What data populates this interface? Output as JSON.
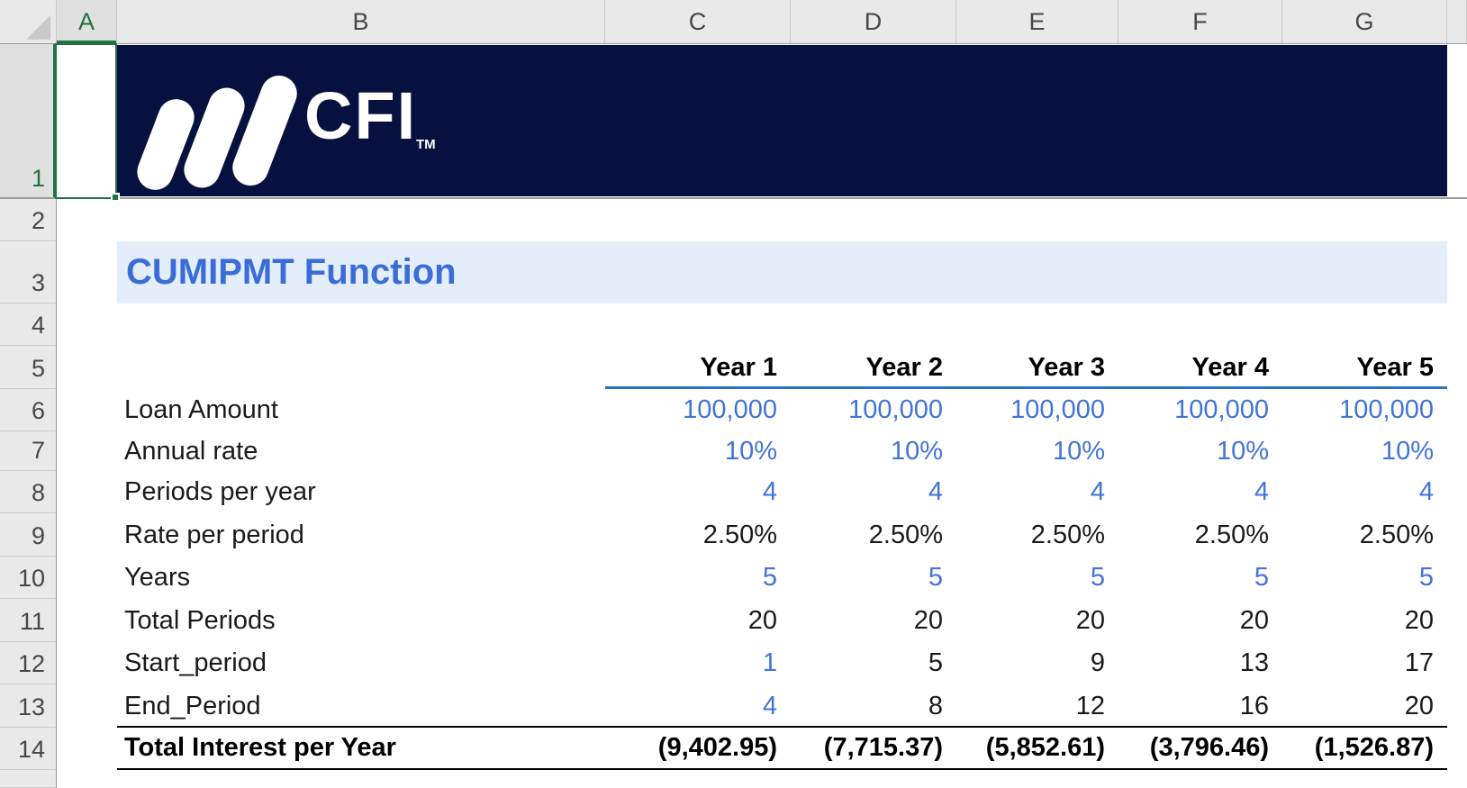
{
  "column_headers": [
    "A",
    "B",
    "C",
    "D",
    "E",
    "F",
    "G"
  ],
  "selected_column": "A",
  "row_headers": [
    "1",
    "2",
    "3",
    "4",
    "5",
    "6",
    "7",
    "8",
    "9",
    "10",
    "11",
    "12",
    "13",
    "14"
  ],
  "selected_row": "1",
  "banner": {
    "logo_text": "CFI",
    "logo_tm": "TM"
  },
  "title": {
    "text": "CUMIPMT Function"
  },
  "table": {
    "column_titles": [
      "Year 1",
      "Year 2",
      "Year 3",
      "Year 4",
      "Year 5"
    ],
    "rows": [
      {
        "label": "Loan Amount",
        "values": [
          "100,000",
          "100,000",
          "100,000",
          "100,000",
          "100,000"
        ],
        "value_styles": [
          "input",
          "input",
          "input",
          "input",
          "input"
        ]
      },
      {
        "label": "Annual rate",
        "values": [
          "10%",
          "10%",
          "10%",
          "10%",
          "10%"
        ],
        "value_styles": [
          "input",
          "input",
          "input",
          "input",
          "input"
        ]
      },
      {
        "label": "Periods per year",
        "values": [
          "4",
          "4",
          "4",
          "4",
          "4"
        ],
        "value_styles": [
          "input",
          "input",
          "input",
          "input",
          "input"
        ]
      },
      {
        "label": "Rate per period",
        "values": [
          "2.50%",
          "2.50%",
          "2.50%",
          "2.50%",
          "2.50%"
        ],
        "value_styles": [
          "formula",
          "formula",
          "formula",
          "formula",
          "formula"
        ]
      },
      {
        "label": "Years",
        "values": [
          "5",
          "5",
          "5",
          "5",
          "5"
        ],
        "value_styles": [
          "input",
          "input",
          "input",
          "input",
          "input"
        ]
      },
      {
        "label": "Total Periods",
        "values": [
          "20",
          "20",
          "20",
          "20",
          "20"
        ],
        "value_styles": [
          "formula",
          "formula",
          "formula",
          "formula",
          "formula"
        ]
      },
      {
        "label": "Start_period",
        "values": [
          "1",
          "5",
          "9",
          "13",
          "17"
        ],
        "value_styles": [
          "input",
          "formula",
          "formula",
          "formula",
          "formula"
        ]
      },
      {
        "label": "End_Period",
        "values": [
          "4",
          "8",
          "12",
          "16",
          "20"
        ],
        "value_styles": [
          "input",
          "formula",
          "formula",
          "formula",
          "formula"
        ]
      }
    ],
    "total_row": {
      "label": "Total Interest per Year",
      "values": [
        "(9,402.95)",
        "(7,715.37)",
        "(5,852.61)",
        "(3,796.46)",
        "(1,526.87)"
      ]
    }
  },
  "colors": {
    "banner_navy": "#061140",
    "title_blue": "#3B6CD8",
    "input_blue": "#4273D9",
    "formula_black": "#1A1A1A",
    "title_band_bg": "#E3EEFA",
    "header_line_blue": "#2E70C4",
    "selection_green": "#217346"
  }
}
